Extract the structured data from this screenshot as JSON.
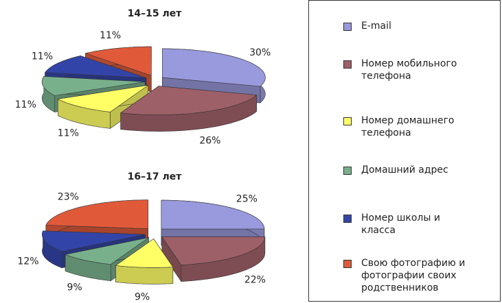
{
  "chart_data": [
    {
      "type": "pie",
      "title": "14–15 лет",
      "categories": [
        "E-mail",
        "Номер мобильного телефона",
        "Номер домашнего телефона",
        "Домашний адрес",
        "Номер школы и класса",
        "Свою фотографию и фотографии своих родственников"
      ],
      "values": [
        30,
        26,
        11,
        11,
        11,
        11
      ],
      "value_labels": [
        "30%",
        "26%",
        "11%",
        "11%",
        "11%",
        "11%"
      ],
      "colors": [
        "#9999dd",
        "#9e6068",
        "#ffff66",
        "#78b08c",
        "#3344a8",
        "#e05a3a"
      ]
    },
    {
      "type": "pie",
      "title": "16–17 лет",
      "categories": [
        "E-mail",
        "Номер мобильного телефона",
        "Номер домашнего телефона",
        "Домашний адрес",
        "Номер школы и класса",
        "Свою фотографию и фотографии своих родственников"
      ],
      "values": [
        25,
        22,
        9,
        9,
        12,
        23
      ],
      "value_labels": [
        "25%",
        "22%",
        "9%",
        "9%",
        "12%",
        "23%"
      ],
      "colors": [
        "#9999dd",
        "#9e6068",
        "#ffff66",
        "#78b08c",
        "#3344a8",
        "#e05a3a"
      ]
    }
  ]
}
